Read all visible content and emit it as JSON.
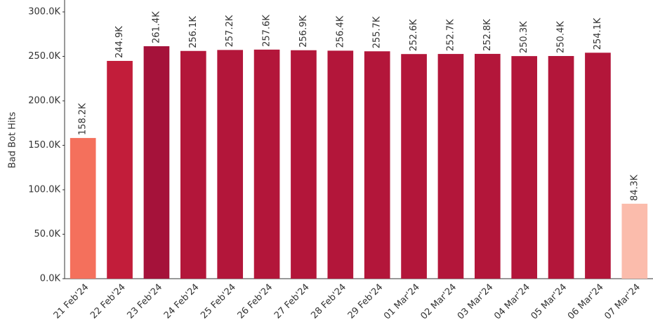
{
  "chart_data": {
    "type": "bar",
    "y_label": "Bad Bot Hits",
    "categories": [
      "21 Feb'24",
      "22 Feb'24",
      "23 Feb'24",
      "24 Feb'24",
      "25 Feb'24",
      "26 Feb'24",
      "27 Feb'24",
      "28 Feb'24",
      "29 Feb'24",
      "01 Mar'24",
      "02 Mar'24",
      "03 Mar'24",
      "04 Mar'24",
      "05 Mar'24",
      "06 Mar'24",
      "07 Mar'24"
    ],
    "values": [
      158200,
      244900,
      261400,
      256100,
      257200,
      257600,
      256900,
      256400,
      255700,
      252600,
      252700,
      252800,
      250300,
      250400,
      254100,
      84300
    ],
    "value_labels": [
      "158.2K",
      "244.9K",
      "261.4K",
      "256.1K",
      "257.2K",
      "257.6K",
      "256.9K",
      "256.4K",
      "255.7K",
      "252.6K",
      "252.7K",
      "252.8K",
      "250.3K",
      "250.4K",
      "254.1K",
      "84.3K"
    ],
    "colors": [
      "#f4705c",
      "#c21d3a",
      "#a5123a",
      "#b3163a",
      "#b3163a",
      "#b3163a",
      "#b3163a",
      "#b3163a",
      "#b3163a",
      "#b3163a",
      "#b3163a",
      "#b3163a",
      "#b3163a",
      "#b3163a",
      "#b3163a",
      "#fbbcac"
    ],
    "ylim": [
      0,
      300000
    ],
    "yticks": [
      {
        "value": 0,
        "label": "0.0K"
      },
      {
        "value": 50000,
        "label": "50.0K"
      },
      {
        "value": 100000,
        "label": "100.0K"
      },
      {
        "value": 150000,
        "label": "150.0K"
      },
      {
        "value": 200000,
        "label": "200.0K"
      },
      {
        "value": 250000,
        "label": "250.0K"
      },
      {
        "value": 300000,
        "label": "300.0K"
      }
    ],
    "grid": false
  }
}
